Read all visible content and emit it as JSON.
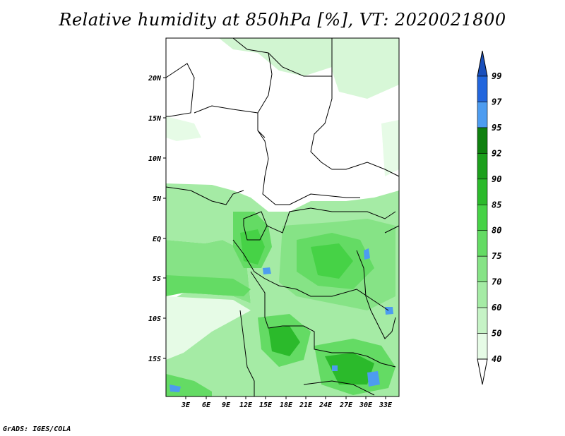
{
  "title": "Relative humidity at 850hPa [%], VT: 2020021800",
  "footer": "GrADS: IGES/COLA",
  "axes": {
    "lon_ticks": [
      "3E",
      "6E",
      "9E",
      "12E",
      "15E",
      "18E",
      "21E",
      "24E",
      "27E",
      "30E",
      "33E"
    ],
    "lat_ticks": [
      "20N",
      "15N",
      "10N",
      "5N",
      "EQ",
      "5S",
      "10S",
      "15S"
    ]
  },
  "colorbar": {
    "levels": [
      "40",
      "50",
      "60",
      "70",
      "75",
      "80",
      "85",
      "90",
      "92",
      "95",
      "97",
      "99"
    ],
    "colors": [
      "#ffffff",
      "#e6fbe6",
      "#c6f3c6",
      "#a5eba5",
      "#86e386",
      "#64db64",
      "#46d246",
      "#2bba2b",
      "#1c9f1c",
      "#0f800f",
      "#4d9cf0",
      "#2266dd",
      "#1a4fbb"
    ]
  }
}
